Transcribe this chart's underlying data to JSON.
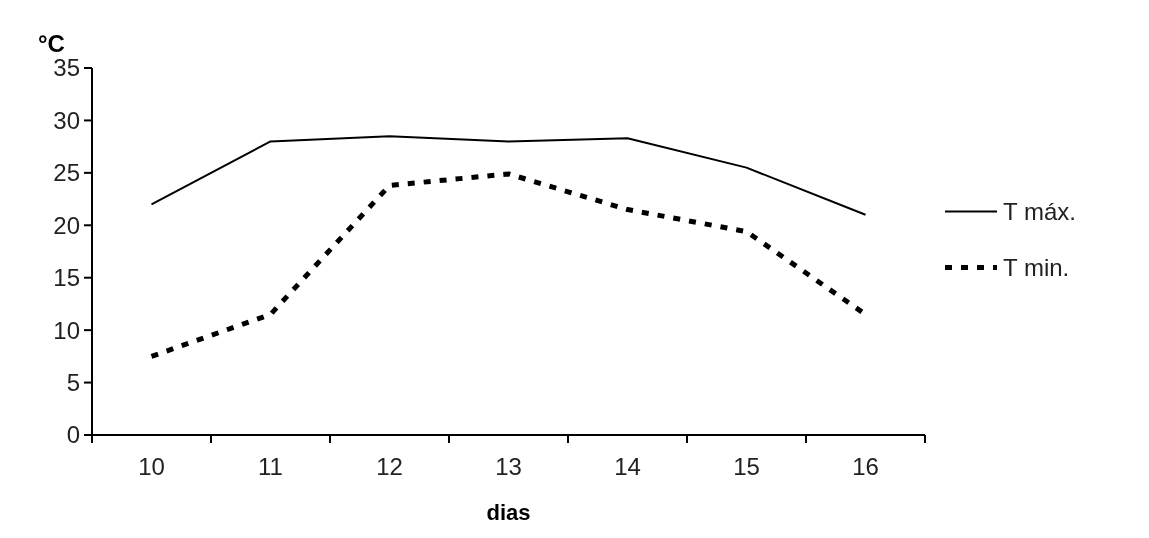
{
  "chart_data": {
    "type": "line",
    "xlabel": "dias",
    "ylabel": "°C",
    "categories": [
      "10",
      "11",
      "12",
      "13",
      "14",
      "15",
      "16"
    ],
    "ylim": [
      0,
      35
    ],
    "yticks": [
      0,
      5,
      10,
      15,
      20,
      25,
      30,
      35
    ],
    "legend": "right",
    "series": [
      {
        "name": "T máx.",
        "color": "#000000",
        "line_style": "solid",
        "values": [
          22,
          28,
          28.5,
          28,
          28.3,
          25.5,
          21
        ]
      },
      {
        "name": "T min.",
        "color": "#000000",
        "line_style": "dotted",
        "values": [
          7.5,
          11.5,
          23.8,
          24.9,
          21.5,
          19.4,
          11.5
        ]
      }
    ]
  }
}
